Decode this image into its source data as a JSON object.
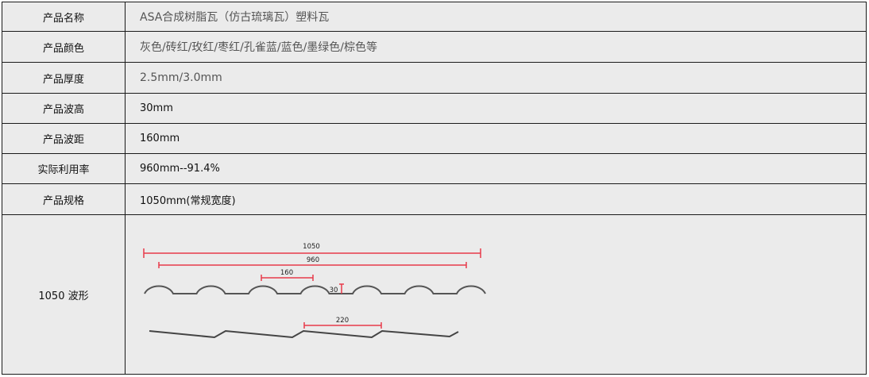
{
  "rows": [
    {
      "label": "产品名称",
      "value": "ASA合成树脂瓦（仿古琉璃瓦）塑料瓦"
    },
    {
      "label": "产品颜色",
      "value": "灰色/砖红/玫红/枣红/孔雀蓝/蓝色/墨绿色/棕色等"
    },
    {
      "label": "产品厚度",
      "value": "2.5mm/3.0mm"
    },
    {
      "label": "产品波高",
      "value": "30mm"
    },
    {
      "label": "产品波距",
      "value": "160mm"
    },
    {
      "label": "实际利用率",
      "value": "960mm--91.4%"
    },
    {
      "label": "产品规格",
      "value": "1050mm(常规宽度)"
    },
    {
      "label": "1050 波形",
      "value": ""
    }
  ],
  "diagram": {
    "total_width": "1050",
    "effective_width": "960",
    "pitch": "160",
    "height": "30",
    "side_pitch": "220",
    "dimension_color": "#e83a4a",
    "profile_color": "#555555"
  }
}
